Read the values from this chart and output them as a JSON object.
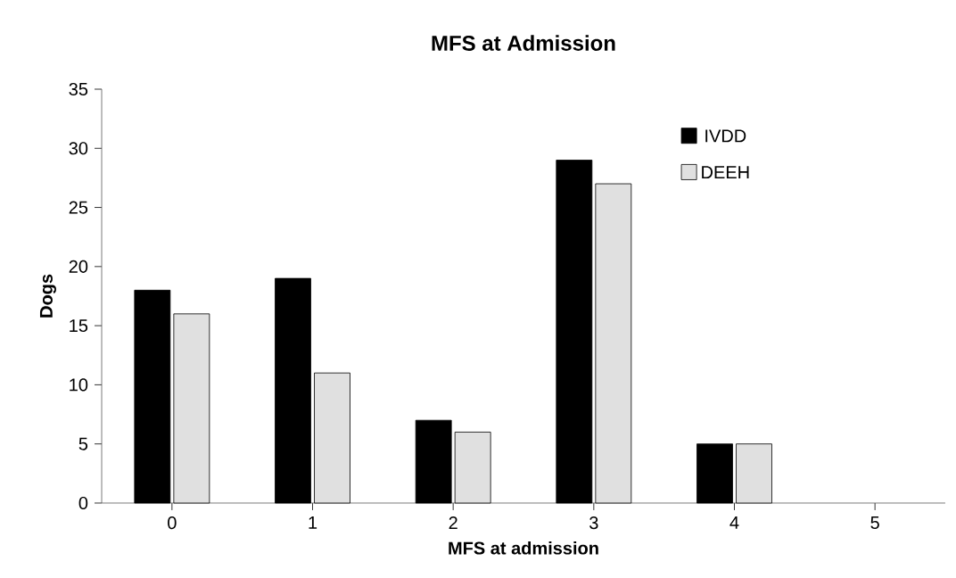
{
  "chart_data": {
    "type": "bar",
    "title": "MFS at Admission",
    "xlabel": "MFS at admission",
    "ylabel": "Dogs",
    "categories": [
      "0",
      "1",
      "2",
      "3",
      "4",
      "5"
    ],
    "series": [
      {
        "name": "IVDD",
        "color": "#000000",
        "values": [
          18,
          19,
          7,
          29,
          5,
          0
        ]
      },
      {
        "name": "DEEH",
        "color": "#e0e0e0",
        "values": [
          16,
          11,
          6,
          27,
          5,
          0
        ]
      }
    ],
    "ylim": [
      0,
      35
    ],
    "yticks": [
      0,
      5,
      10,
      15,
      20,
      25,
      30,
      35
    ],
    "grid": false,
    "legend": "top right"
  }
}
